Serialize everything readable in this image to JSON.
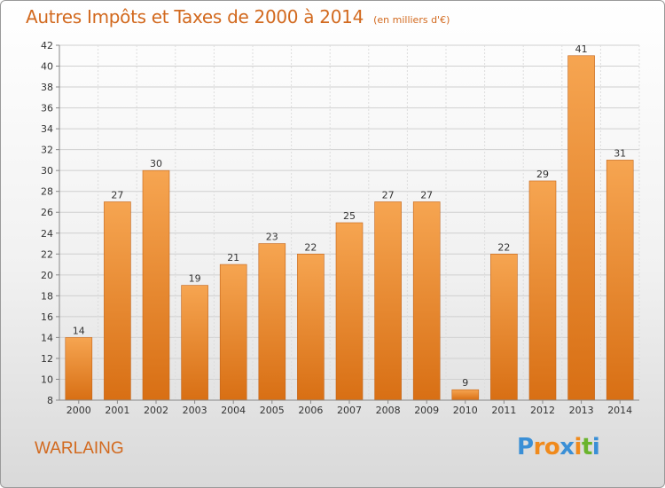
{
  "title": "Autres Impôts et Taxes de 2000 à 2014",
  "subtitle": "(en milliers d'€)",
  "location": "WARLAING",
  "logo": {
    "letters": [
      "P",
      "r",
      "o",
      "x",
      "i",
      "t",
      "i"
    ],
    "colors": [
      "#3a8fd6",
      "#f08a1c",
      "#f08a1c",
      "#3a8fd6",
      "#f08a1c",
      "#6ab42d",
      "#3a8fd6"
    ]
  },
  "colors": {
    "bar_light": "#f6a551",
    "bar_dark": "#d86f14",
    "title": "#d2691e"
  },
  "chart_data": {
    "type": "bar",
    "categories": [
      "2000",
      "2001",
      "2002",
      "2003",
      "2004",
      "2005",
      "2006",
      "2007",
      "2008",
      "2009",
      "2010",
      "2011",
      "2012",
      "2013",
      "2014"
    ],
    "values": [
      14,
      27,
      30,
      19,
      21,
      23,
      22,
      25,
      27,
      27,
      9,
      22,
      29,
      41,
      31
    ],
    "ylim": [
      8,
      42
    ],
    "yticks": [
      8,
      10,
      12,
      14,
      16,
      18,
      20,
      22,
      24,
      26,
      28,
      30,
      32,
      34,
      36,
      38,
      40,
      42
    ],
    "grid": true
  }
}
